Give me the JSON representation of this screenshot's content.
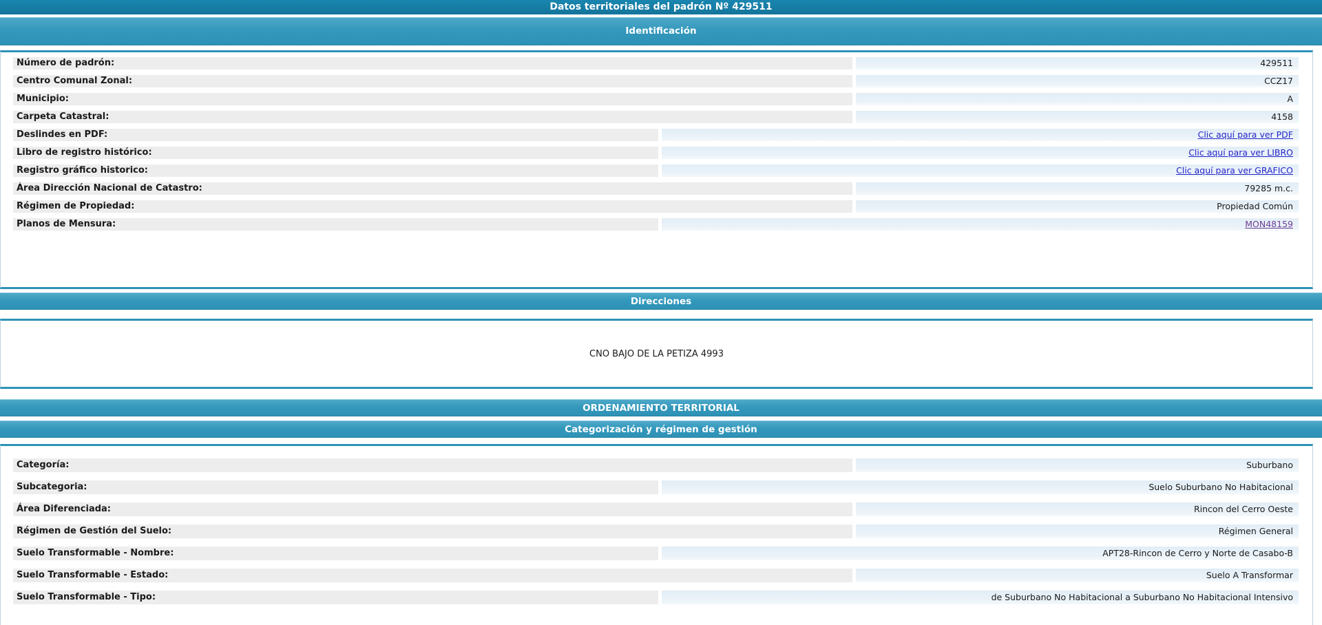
{
  "title": "Datos territoriales del padrón Nº 429511",
  "colors": {
    "title_bar": "#13749B",
    "section_header": "#3398BC",
    "section_border": "#2E93B7",
    "label_bg": "#EDEDED",
    "value_bg": "#E3EDF6",
    "link": "#2525C8",
    "visited_link": "#6A3D94",
    "text": "#1A1A1A"
  },
  "identificacion": {
    "header": "Identificación",
    "rows": [
      {
        "label": "Número de padrón:",
        "value": "429511"
      },
      {
        "label": "Centro Comunal Zonal:",
        "value": "CCZ17"
      },
      {
        "label": "Municipio:",
        "value": "A"
      },
      {
        "label": "Carpeta Catastral:",
        "value": "4158"
      },
      {
        "label": "Deslindes en PDF:",
        "value": "Clic aquí para ver PDF"
      },
      {
        "label": "Libro de registro histórico:",
        "value": "Clic aquí para ver LIBRO"
      },
      {
        "label": "Registro gráfico historico:",
        "value": "Clic aquí para ver GRAFICO"
      },
      {
        "label": "Área Dirección Nacional de Catastro:",
        "value": "79285 m.c."
      },
      {
        "label": "Régimen de Propiedad:",
        "value": "Propiedad Común"
      },
      {
        "label": "Planos de Mensura:",
        "value": "MON48159"
      }
    ]
  },
  "direcciones": {
    "header": "Direcciones",
    "address": "CNO BAJO DE LA PETIZA 4993"
  },
  "ordenamiento": {
    "header": "ORDENAMIENTO TERRITORIAL"
  },
  "categorizacion": {
    "header": "Categorización y régimen de gestión",
    "rows": [
      {
        "label": "Categoría:",
        "value": "Suburbano"
      },
      {
        "label": "Subcategoria:",
        "value": "Suelo Suburbano No Habitacional"
      },
      {
        "label": "Área Diferenciada:",
        "value": "Rincon del Cerro Oeste"
      },
      {
        "label": "Régimen de Gestión del Suelo:",
        "value": "Régimen General"
      },
      {
        "label": "Suelo Transformable - Nombre:",
        "value": "APT28-Rincon de Cerro y Norte de Casabo-B"
      },
      {
        "label": "Suelo Transformable - Estado:",
        "value": "Suelo A Transformar"
      },
      {
        "label": "Suelo Transformable - Tipo:",
        "value": "de Suburbano No Habitacional a Suburbano No Habitacional Intensivo"
      }
    ]
  }
}
